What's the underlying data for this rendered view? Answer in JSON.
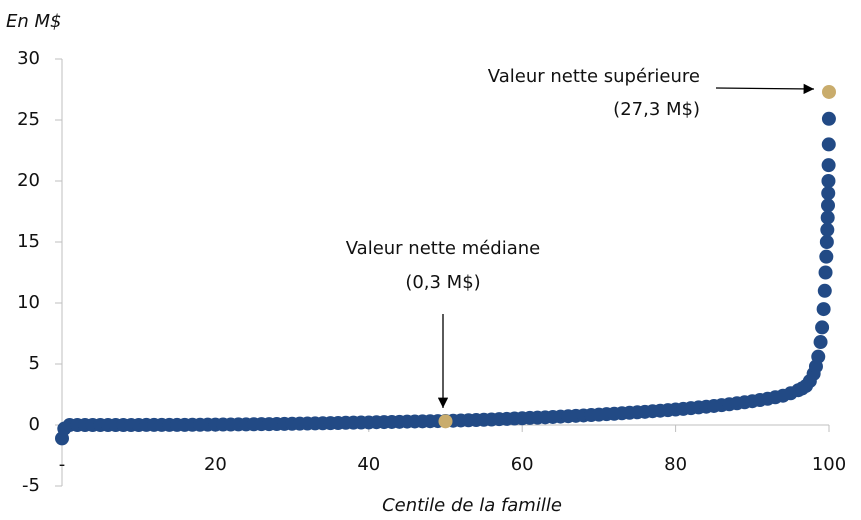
{
  "chart_data": {
    "type": "scatter",
    "y_label": "En M$",
    "x_label": "Centile de la famille",
    "xlim": [
      0,
      100
    ],
    "ylim": [
      -5,
      30
    ],
    "xticks": [
      {
        "value": 0,
        "label": "-"
      },
      20,
      40,
      60,
      80,
      100
    ],
    "yticks": [
      30,
      25,
      20,
      15,
      10,
      5,
      0,
      -5
    ],
    "series": [
      {
        "color": "#224a85",
        "x": [
          0,
          0.3,
          1,
          2,
          3,
          4,
          5,
          6,
          7,
          8,
          9,
          10,
          11,
          12,
          13,
          14,
          15,
          16,
          17,
          18,
          19,
          20,
          21,
          22,
          23,
          24,
          25,
          26,
          27,
          28,
          29,
          30,
          31,
          32,
          33,
          34,
          35,
          36,
          37,
          38,
          39,
          40,
          41,
          42,
          43,
          44,
          45,
          46,
          47,
          48,
          49,
          50,
          51,
          52,
          53,
          54,
          55,
          56,
          57,
          58,
          59,
          60,
          61,
          62,
          63,
          64,
          65,
          66,
          67,
          68,
          69,
          70,
          71,
          72,
          73,
          74,
          75,
          76,
          77,
          78,
          79,
          80,
          81,
          82,
          83,
          84,
          85,
          86,
          87,
          88,
          89,
          90,
          91,
          92,
          93,
          94,
          95,
          96,
          96.5,
          97,
          97.5,
          98,
          98.3,
          98.6,
          98.9,
          99.1,
          99.3,
          99.45,
          99.55,
          99.65,
          99.72,
          99.78,
          99.83,
          99.87,
          99.9,
          99.93,
          99.95,
          99.97,
          99.99
        ],
        "values": [
          -1.1,
          -0.3,
          0,
          0,
          0,
          0,
          0,
          0,
          0,
          0,
          0,
          0,
          0.01,
          0.01,
          0.01,
          0.01,
          0.01,
          0.01,
          0.02,
          0.02,
          0.03,
          0.03,
          0.04,
          0.04,
          0.05,
          0.05,
          0.06,
          0.07,
          0.07,
          0.08,
          0.09,
          0.1,
          0.11,
          0.12,
          0.13,
          0.14,
          0.15,
          0.16,
          0.18,
          0.19,
          0.2,
          0.21,
          0.23,
          0.24,
          0.25,
          0.26,
          0.28,
          0.29,
          0.3,
          0.31,
          0.32,
          0.33,
          0.35,
          0.37,
          0.39,
          0.41,
          0.43,
          0.45,
          0.48,
          0.5,
          0.53,
          0.55,
          0.58,
          0.6,
          0.63,
          0.66,
          0.69,
          0.72,
          0.75,
          0.78,
          0.82,
          0.85,
          0.89,
          0.92,
          0.96,
          1.0,
          1.04,
          1.08,
          1.13,
          1.17,
          1.22,
          1.27,
          1.32,
          1.38,
          1.44,
          1.5,
          1.56,
          1.63,
          1.7,
          1.78,
          1.86,
          1.95,
          2.05,
          2.15,
          2.27,
          2.4,
          2.6,
          2.85,
          3.0,
          3.2,
          3.6,
          4.2,
          4.8,
          5.6,
          6.8,
          8,
          9.5,
          11,
          12.5,
          13.8,
          15,
          16,
          17,
          18,
          19,
          20,
          21.3,
          23,
          25.1
        ]
      },
      {
        "color": "#c9ac6c",
        "x": [
          50,
          100
        ],
        "values": [
          0.3,
          27.3
        ]
      }
    ],
    "annotations": [
      {
        "line1": "Valeur nette médiane",
        "line2": "(0,3 M$)"
      },
      {
        "line1": "Valeur nette supérieure",
        "line2": "(27,3 M$)"
      }
    ]
  }
}
